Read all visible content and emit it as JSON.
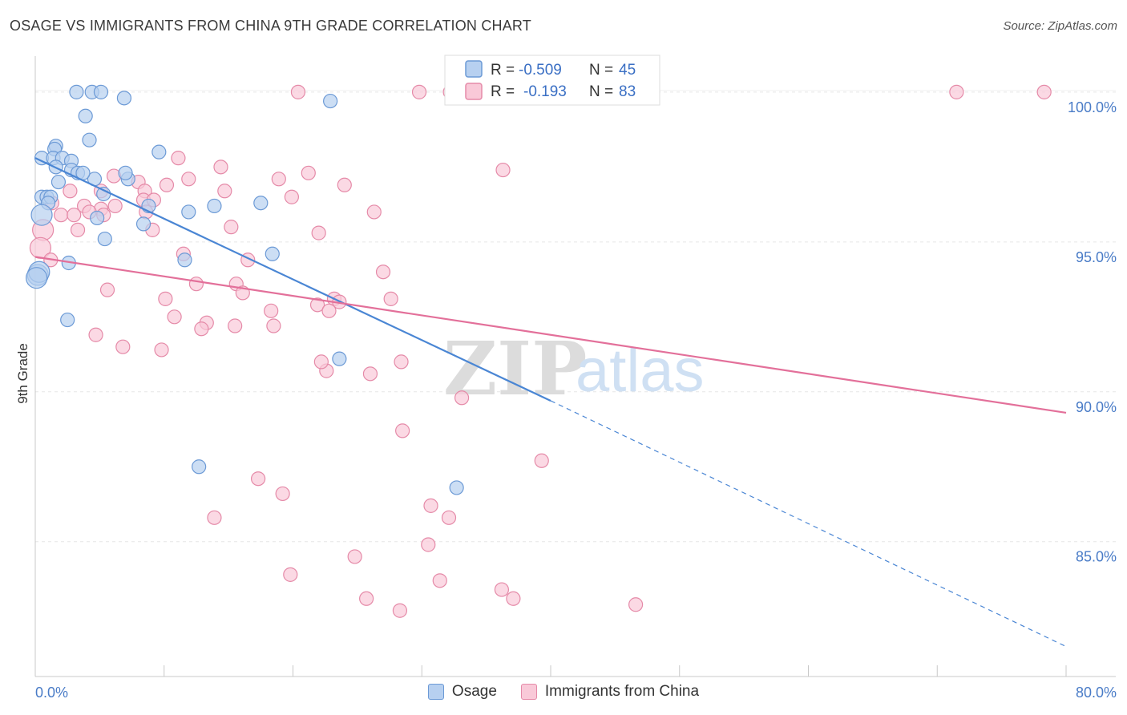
{
  "title": "OSAGE VS IMMIGRANTS FROM CHINA 9TH GRADE CORRELATION CHART",
  "source": "Source: ZipAtlas.com",
  "watermark": {
    "zip": "ZIP",
    "atlas": "atlas"
  },
  "colors": {
    "blue": "#4a86d4",
    "blue_fill": "#b7d0f0",
    "pink": "#e3709a",
    "pink_fill": "#f9c9d8",
    "tick": "#4a7cc7"
  },
  "legend_box": {
    "rows": [
      {
        "r_label": "R = ",
        "r_value": "-0.509",
        "n_label": "N = ",
        "n_value": "45",
        "color": "blue"
      },
      {
        "r_label": "R = ",
        "r_value": "-0.193",
        "n_label": "N = ",
        "n_value": "83",
        "color": "pink"
      }
    ]
  },
  "bottom_legend": {
    "series1": "Osage",
    "series2": "Immigrants from China"
  },
  "chart_data": {
    "type": "scatter",
    "xlabel": "",
    "ylabel": "9th Grade",
    "xlim": [
      0,
      80
    ],
    "ylim": [
      80.5,
      101.2
    ],
    "x_tick_labels": {
      "min": "0.0%",
      "max": "80.0%"
    },
    "y_ticks": [
      {
        "value": 100,
        "label": "100.0%"
      },
      {
        "value": 95,
        "label": "95.0%"
      },
      {
        "value": 90,
        "label": "90.0%"
      },
      {
        "value": 85,
        "label": "85.0%"
      }
    ],
    "series": [
      {
        "name": "Osage",
        "color": "blue",
        "r": -0.509,
        "n": 45,
        "trend": {
          "x0": 0,
          "y0": 97.8,
          "x1": 40,
          "y1": 89.7,
          "dash_x1": 80,
          "dash_y1": 81.5
        },
        "points": [
          [
            3.2,
            100
          ],
          [
            4.4,
            100
          ],
          [
            5.1,
            100
          ],
          [
            6.9,
            99.8
          ],
          [
            22.9,
            99.7
          ],
          [
            3.9,
            99.2
          ],
          [
            4.2,
            98.4
          ],
          [
            1.6,
            98.2
          ],
          [
            1.5,
            98.1
          ],
          [
            9.6,
            98.0
          ],
          [
            0.5,
            97.8
          ],
          [
            1.4,
            97.8
          ],
          [
            2.1,
            97.8
          ],
          [
            2.8,
            97.7
          ],
          [
            1.6,
            97.5
          ],
          [
            2.8,
            97.4
          ],
          [
            3.3,
            97.3
          ],
          [
            4.6,
            97.1
          ],
          [
            7.2,
            97.1
          ],
          [
            7.0,
            97.3
          ],
          [
            1.8,
            97.0
          ],
          [
            0.5,
            96.5
          ],
          [
            0.9,
            96.5
          ],
          [
            1.2,
            96.5
          ],
          [
            1.0,
            96.3
          ],
          [
            5.3,
            96.6
          ],
          [
            8.8,
            96.2
          ],
          [
            13.9,
            96.2
          ],
          [
            17.5,
            96.3
          ],
          [
            11.9,
            96.0
          ],
          [
            0.5,
            95.9
          ],
          [
            4.8,
            95.8
          ],
          [
            8.4,
            95.6
          ],
          [
            5.4,
            95.1
          ],
          [
            18.4,
            94.6
          ],
          [
            11.6,
            94.4
          ],
          [
            2.6,
            94.3
          ],
          [
            0.2,
            93.9
          ],
          [
            2.5,
            92.4
          ],
          [
            23.6,
            91.1
          ],
          [
            12.7,
            87.5
          ],
          [
            32.7,
            86.8
          ],
          [
            3.7,
            97.3
          ],
          [
            0.3,
            94.0
          ],
          [
            0.1,
            93.8
          ]
        ]
      },
      {
        "name": "Immigrants from China",
        "color": "pink",
        "r": -0.193,
        "n": 83,
        "trend": {
          "x0": 0,
          "y0": 94.5,
          "x1": 80,
          "y1": 89.3
        },
        "points": [
          [
            20.4,
            100
          ],
          [
            29.8,
            100
          ],
          [
            32.2,
            100
          ],
          [
            71.5,
            100
          ],
          [
            78.3,
            100
          ],
          [
            11.1,
            97.8
          ],
          [
            14.4,
            97.5
          ],
          [
            36.3,
            97.4
          ],
          [
            6.1,
            97.2
          ],
          [
            11.9,
            97.1
          ],
          [
            18.9,
            97.1
          ],
          [
            21.2,
            97.3
          ],
          [
            8.0,
            97.0
          ],
          [
            10.2,
            96.9
          ],
          [
            24.0,
            96.9
          ],
          [
            2.7,
            96.7
          ],
          [
            8.5,
            96.7
          ],
          [
            14.7,
            96.7
          ],
          [
            5.1,
            96.7
          ],
          [
            19.9,
            96.5
          ],
          [
            8.4,
            96.4
          ],
          [
            9.2,
            96.4
          ],
          [
            1.3,
            96.3
          ],
          [
            6.2,
            96.2
          ],
          [
            3.8,
            96.2
          ],
          [
            5.1,
            96.1
          ],
          [
            8.6,
            96.0
          ],
          [
            26.3,
            96.0
          ],
          [
            2.0,
            95.9
          ],
          [
            3.0,
            95.9
          ],
          [
            5.3,
            95.9
          ],
          [
            15.2,
            95.5
          ],
          [
            0.6,
            95.4
          ],
          [
            3.3,
            95.4
          ],
          [
            9.1,
            95.4
          ],
          [
            22.0,
            95.3
          ],
          [
            0.4,
            94.8
          ],
          [
            11.5,
            94.6
          ],
          [
            1.2,
            94.4
          ],
          [
            16.5,
            94.4
          ],
          [
            27.0,
            94.0
          ],
          [
            12.5,
            93.6
          ],
          [
            15.6,
            93.6
          ],
          [
            5.6,
            93.4
          ],
          [
            16.1,
            93.3
          ],
          [
            10.1,
            93.1
          ],
          [
            23.2,
            93.1
          ],
          [
            27.6,
            93.1
          ],
          [
            21.9,
            92.9
          ],
          [
            18.3,
            92.7
          ],
          [
            22.8,
            92.7
          ],
          [
            10.8,
            92.5
          ],
          [
            13.3,
            92.3
          ],
          [
            15.5,
            92.2
          ],
          [
            18.5,
            92.2
          ],
          [
            12.9,
            92.1
          ],
          [
            4.7,
            91.9
          ],
          [
            6.8,
            91.5
          ],
          [
            9.8,
            91.4
          ],
          [
            28.4,
            91.0
          ],
          [
            22.6,
            90.7
          ],
          [
            26.0,
            90.6
          ],
          [
            33.1,
            89.8
          ],
          [
            28.5,
            88.7
          ],
          [
            39.3,
            87.7
          ],
          [
            17.3,
            87.1
          ],
          [
            19.2,
            86.6
          ],
          [
            30.7,
            86.2
          ],
          [
            32.1,
            85.8
          ],
          [
            13.9,
            85.8
          ],
          [
            30.5,
            84.9
          ],
          [
            24.8,
            84.5
          ],
          [
            19.8,
            83.9
          ],
          [
            31.4,
            83.7
          ],
          [
            36.2,
            83.4
          ],
          [
            25.7,
            83.1
          ],
          [
            37.1,
            83.1
          ],
          [
            46.6,
            82.9
          ],
          [
            28.3,
            82.7
          ],
          [
            32.8,
            100.0
          ],
          [
            23.6,
            93.0
          ],
          [
            22.2,
            91.0
          ],
          [
            4.2,
            96.0
          ]
        ]
      }
    ]
  }
}
